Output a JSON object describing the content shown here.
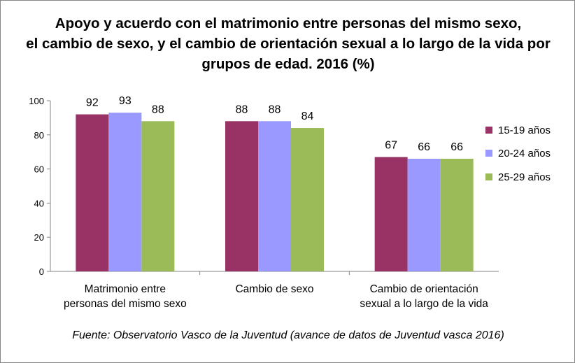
{
  "chart_data": {
    "type": "bar",
    "title_lines": [
      "Apoyo y acuerdo con el matrimonio entre personas del mismo sexo,",
      "el cambio de sexo, y el cambio de orientación sexual a lo largo de la vida por",
      "grupos de edad. 2016 (%)"
    ],
    "categories": [
      [
        "Matrimonio entre",
        "personas del mismo sexo"
      ],
      [
        "Cambio de sexo"
      ],
      [
        "Cambio de orientación",
        "sexual a lo largo de la vida"
      ]
    ],
    "series": [
      {
        "name": "15-19 años",
        "color": "#993366",
        "values": [
          92,
          88,
          67
        ]
      },
      {
        "name": "20-24 años",
        "color": "#9999FF",
        "values": [
          93,
          88,
          66
        ]
      },
      {
        "name": "25-29 años",
        "color": "#9BBB59",
        "values": [
          88,
          84,
          66
        ]
      }
    ],
    "ylim": [
      0,
      100
    ],
    "yticks": [
      0,
      20,
      40,
      60,
      80,
      100
    ],
    "xlabel": "",
    "ylabel": "",
    "grid": false,
    "legend": "right",
    "data_labels": true
  },
  "source": "Fuente: Observatorio Vasco de la Juventud (avance de datos de Juventud vasca 2016)"
}
